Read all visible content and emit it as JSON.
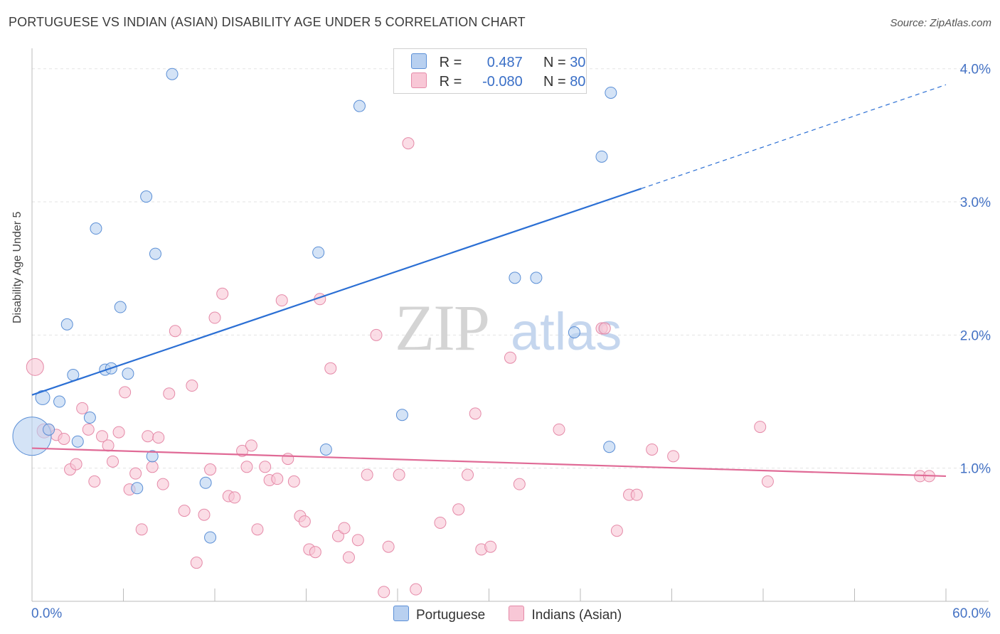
{
  "title": "PORTUGUESE VS INDIAN (ASIAN) DISABILITY AGE UNDER 5 CORRELATION CHART",
  "source": "Source: ZipAtlas.com",
  "colors": {
    "blue_fill": "#b8d0f0",
    "blue_stroke": "#5b8fd6",
    "blue_line": "#2b6fd4",
    "pink_fill": "#f8c7d6",
    "pink_stroke": "#e58aa8",
    "pink_line": "#e06a96",
    "grid": "#e3e3e3",
    "tick_text": "#4472c4"
  },
  "legend": {
    "rows": [
      {
        "r_label": "R =",
        "r_value": "0.487",
        "n_label": "N =",
        "n_value": "30"
      },
      {
        "r_label": "R =",
        "r_value": "-0.080",
        "n_label": "N =",
        "n_value": "80"
      }
    ]
  },
  "bottom_legend": [
    "Portuguese",
    "Indians (Asian)"
  ],
  "chart_data": {
    "type": "scatter",
    "title": "PORTUGUESE VS INDIAN (ASIAN) DISABILITY AGE UNDER 5 CORRELATION CHART",
    "xlabel": "",
    "ylabel": "Disability Age Under 5",
    "xlim": [
      0,
      60
    ],
    "ylim": [
      0,
      4.1
    ],
    "x_tick_labels": [
      "0.0%",
      "60.0%"
    ],
    "y_ticks": [
      1.0,
      2.0,
      3.0,
      4.0
    ],
    "y_tick_labels": [
      "1.0%",
      "2.0%",
      "3.0%",
      "4.0%"
    ],
    "watermark": "ZIPatlas",
    "series": [
      {
        "name": "Portuguese",
        "r": 0.487,
        "n": 30,
        "trend": {
          "x0": 0,
          "y0": 1.55,
          "x1": 40,
          "y1": 3.1,
          "x_dash_end": 60,
          "y_dash_end": 3.88
        },
        "points": [
          [
            0.0,
            1.24,
            26
          ],
          [
            0.7,
            1.53,
            9
          ],
          [
            1.1,
            1.29,
            7
          ],
          [
            1.8,
            1.5,
            7
          ],
          [
            2.3,
            2.08,
            7
          ],
          [
            2.7,
            1.7,
            7
          ],
          [
            3.0,
            1.2,
            7
          ],
          [
            3.8,
            1.38,
            7
          ],
          [
            4.2,
            2.8,
            7
          ],
          [
            4.8,
            1.74,
            7
          ],
          [
            5.2,
            1.75,
            7
          ],
          [
            5.8,
            2.21,
            7
          ],
          [
            6.3,
            1.71,
            7
          ],
          [
            6.9,
            0.85,
            7
          ],
          [
            7.5,
            3.04,
            7
          ],
          [
            7.9,
            1.09,
            7
          ],
          [
            8.1,
            2.61,
            7
          ],
          [
            9.2,
            3.96,
            7
          ],
          [
            11.4,
            0.89,
            7
          ],
          [
            11.7,
            0.48,
            7
          ],
          [
            18.8,
            2.62,
            7
          ],
          [
            19.3,
            1.14,
            7
          ],
          [
            21.5,
            3.72,
            7
          ],
          [
            24.3,
            1.4,
            7
          ],
          [
            31.7,
            2.43,
            7
          ],
          [
            33.1,
            2.43,
            7
          ],
          [
            35.6,
            2.02,
            7
          ],
          [
            37.4,
            3.34,
            7
          ],
          [
            37.9,
            1.16,
            7
          ],
          [
            38.0,
            3.82,
            7
          ]
        ]
      },
      {
        "name": "Indians (Asian)",
        "r": -0.08,
        "n": 80,
        "trend": {
          "x0": 0,
          "y0": 1.15,
          "x1": 60,
          "y1": 0.94
        },
        "points": [
          [
            0.2,
            1.76,
            11
          ],
          [
            0.8,
            1.28,
            9
          ],
          [
            1.1,
            1.29,
            7
          ],
          [
            1.6,
            1.25,
            7
          ],
          [
            2.1,
            1.22,
            7
          ],
          [
            2.5,
            0.99,
            7
          ],
          [
            2.9,
            1.03,
            7
          ],
          [
            3.3,
            1.45,
            7
          ],
          [
            3.7,
            1.29,
            7
          ],
          [
            4.1,
            0.9,
            7
          ],
          [
            4.6,
            1.24,
            7
          ],
          [
            5.0,
            1.17,
            7
          ],
          [
            5.3,
            1.05,
            7
          ],
          [
            5.7,
            1.27,
            7
          ],
          [
            6.1,
            1.57,
            7
          ],
          [
            6.4,
            0.84,
            7
          ],
          [
            6.8,
            0.96,
            7
          ],
          [
            7.2,
            0.54,
            7
          ],
          [
            7.6,
            1.24,
            7
          ],
          [
            7.9,
            1.01,
            7
          ],
          [
            8.3,
            1.23,
            7
          ],
          [
            8.6,
            0.88,
            7
          ],
          [
            9.0,
            1.56,
            7
          ],
          [
            9.4,
            2.03,
            7
          ],
          [
            10.0,
            0.68,
            7
          ],
          [
            10.5,
            1.62,
            7
          ],
          [
            10.8,
            0.29,
            7
          ],
          [
            11.3,
            0.65,
            7
          ],
          [
            11.7,
            0.99,
            7
          ],
          [
            12.0,
            2.13,
            7
          ],
          [
            12.5,
            2.31,
            7
          ],
          [
            12.9,
            0.79,
            7
          ],
          [
            13.3,
            0.78,
            7
          ],
          [
            13.8,
            1.13,
            7
          ],
          [
            14.1,
            1.01,
            7
          ],
          [
            14.4,
            1.17,
            7
          ],
          [
            14.8,
            0.54,
            7
          ],
          [
            15.3,
            1.01,
            7
          ],
          [
            15.6,
            0.91,
            7
          ],
          [
            16.1,
            0.92,
            7
          ],
          [
            16.4,
            2.26,
            7
          ],
          [
            16.8,
            1.07,
            7
          ],
          [
            17.2,
            0.9,
            7
          ],
          [
            17.6,
            0.64,
            7
          ],
          [
            17.9,
            0.6,
            7
          ],
          [
            18.2,
            0.39,
            7
          ],
          [
            18.6,
            0.37,
            7
          ],
          [
            18.9,
            2.27,
            7
          ],
          [
            19.6,
            1.75,
            7
          ],
          [
            20.1,
            0.49,
            7
          ],
          [
            20.5,
            0.55,
            7
          ],
          [
            20.8,
            0.33,
            7
          ],
          [
            21.4,
            0.46,
            7
          ],
          [
            22.0,
            0.95,
            7
          ],
          [
            22.6,
            2.0,
            7
          ],
          [
            23.1,
            0.07,
            7
          ],
          [
            23.4,
            0.41,
            7
          ],
          [
            24.1,
            0.95,
            7
          ],
          [
            24.7,
            3.44,
            7
          ],
          [
            25.2,
            0.09,
            7
          ],
          [
            26.8,
            0.59,
            7
          ],
          [
            28.0,
            0.69,
            7
          ],
          [
            28.6,
            0.95,
            7
          ],
          [
            29.1,
            1.41,
            7
          ],
          [
            29.5,
            0.39,
            7
          ],
          [
            30.1,
            0.41,
            7
          ],
          [
            31.4,
            1.83,
            7
          ],
          [
            32.0,
            0.88,
            7
          ],
          [
            34.6,
            1.29,
            7
          ],
          [
            37.4,
            2.05,
            7
          ],
          [
            37.6,
            2.05,
            7
          ],
          [
            38.4,
            0.53,
            7
          ],
          [
            39.2,
            0.8,
            7
          ],
          [
            39.7,
            0.8,
            7
          ],
          [
            40.7,
            1.14,
            7
          ],
          [
            42.1,
            1.09,
            7
          ],
          [
            47.8,
            1.31,
            7
          ],
          [
            48.3,
            0.9,
            7
          ],
          [
            58.3,
            0.94,
            7
          ],
          [
            58.9,
            0.94,
            7
          ]
        ]
      }
    ]
  }
}
